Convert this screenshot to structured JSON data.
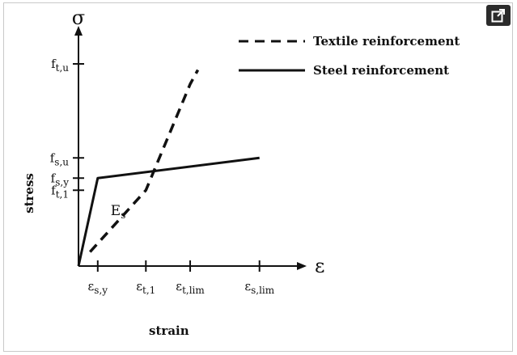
{
  "chart_data": {
    "type": "line",
    "title": "",
    "xlabel": "strain",
    "ylabel": "stress",
    "x_symbol": "ε",
    "y_symbol": "σ",
    "xlim": [
      0,
      1.05
    ],
    "ylim": [
      0,
      1.03
    ],
    "grid": false,
    "legend_position": "top-right",
    "x_ticks": [
      {
        "main": "ε",
        "sub": "s,y",
        "value": 0.1
      },
      {
        "main": "ε",
        "sub": "t,1",
        "value": 0.35
      },
      {
        "main": "ε",
        "sub": "t,lim",
        "value": 0.58
      },
      {
        "main": "ε",
        "sub": "s,lim",
        "value": 0.94
      }
    ],
    "y_ticks": [
      {
        "main": "f",
        "sub": "t,1",
        "value": 0.375
      },
      {
        "main": "f",
        "sub": "s,y",
        "value": 0.435
      },
      {
        "main": "f",
        "sub": "s,u",
        "value": 0.535
      },
      {
        "main": "f",
        "sub": "t,u",
        "value": 1.0
      }
    ],
    "series": [
      {
        "name": "Textile reinforcement",
        "style": "dashed",
        "color": "#111111",
        "x": [
          0.06,
          0.35,
          0.58,
          0.62
        ],
        "y": [
          0.07,
          0.375,
          0.9,
          0.97
        ]
      },
      {
        "name": "Steel reinforcement",
        "style": "solid",
        "color": "#111111",
        "x": [
          0.0,
          0.1,
          0.94
        ],
        "y": [
          0.0,
          0.435,
          0.535
        ]
      }
    ],
    "annotations": [
      {
        "main": "E",
        "sub": "s",
        "x": 0.1,
        "y": 0.3
      }
    ]
  }
}
